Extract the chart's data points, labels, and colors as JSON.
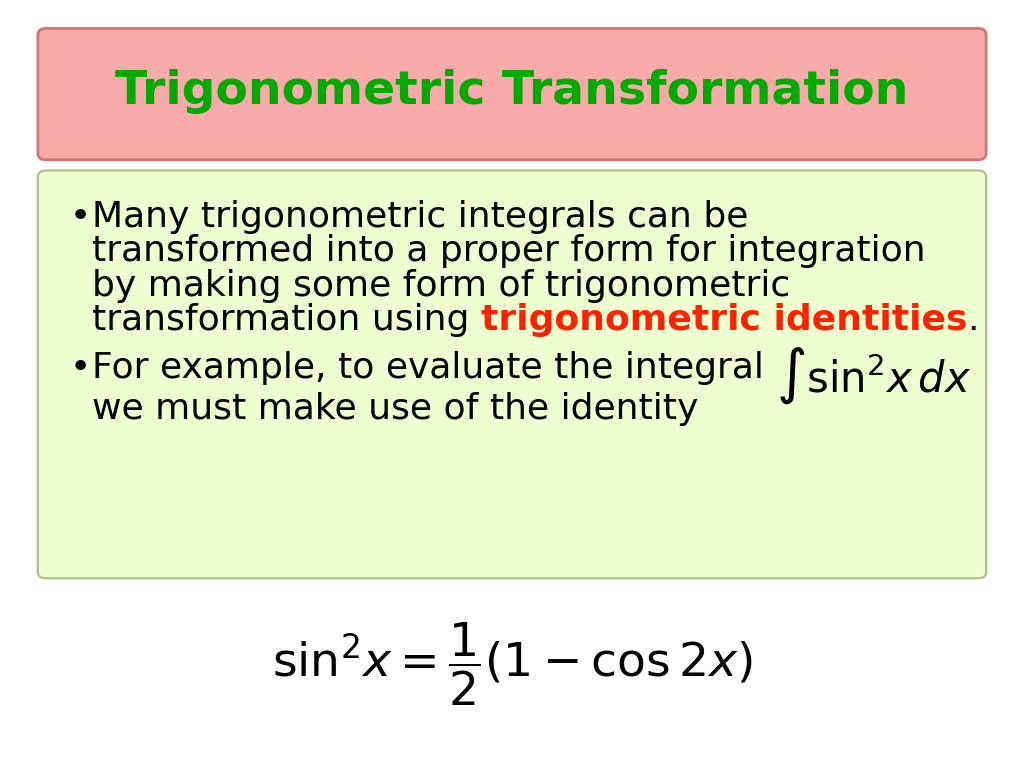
{
  "title": "Trigonometric Transformation",
  "title_color": "#00AA00",
  "title_bg_color": "#F8AAAA",
  "title_border_color": "#CC7777",
  "content_bg_color": "#EEFFD0",
  "content_border_color": "#AABB88",
  "highlight_color": "#FF2200",
  "bg_color": "#FFFFFF",
  "line1": "Many trigonometric integrals can be",
  "line2": "transformed into a proper form for integration",
  "line3": "by making some form of trigonometric",
  "line4_plain": "transformation using ",
  "line4_bold_red": "trigonometric identities",
  "line4_dot": ".",
  "line5_plain": "For example, to evaluate the integral ",
  "line5_math": "$\\int \\sin^{2}\\!x\\, dx$",
  "line6": "we must make use of the identity",
  "formula": "$\\sin^{2}\\! x =\\dfrac{1}{2}\\left(1 - \\cos 2x\\right)$",
  "title_fontsize": 34,
  "body_fontsize": 26,
  "formula_fontsize": 34
}
